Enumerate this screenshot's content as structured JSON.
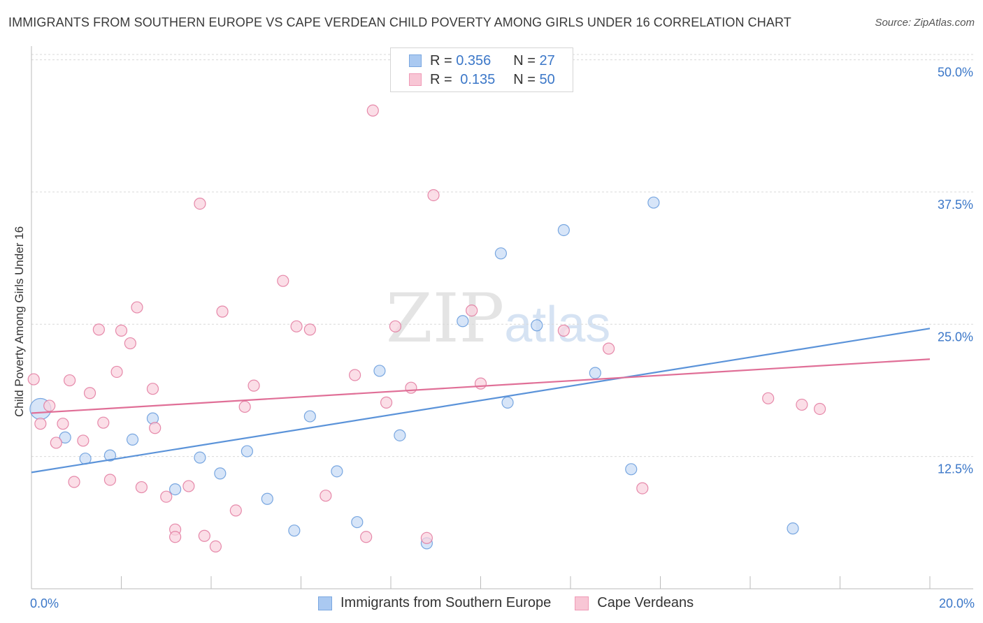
{
  "title": "IMMIGRANTS FROM SOUTHERN EUROPE VS CAPE VERDEAN CHILD POVERTY AMONG GIRLS UNDER 16 CORRELATION CHART",
  "source": "Source: ZipAtlas.com",
  "watermark": {
    "zip": "ZIP",
    "atlas": "atlas"
  },
  "legend": {
    "r_label": "R =",
    "n_label": "N =",
    "rows": [
      {
        "r": "0.356",
        "n": "27",
        "color": "#aac9f1",
        "border": "#7aa7e0"
      },
      {
        "r": "0.135",
        "n": "50",
        "color": "#f8c6d5",
        "border": "#ef9ab6"
      }
    ]
  },
  "bottom_legend": [
    "Immigrants from Southern Europe",
    "Cape Verdeans"
  ],
  "chart_data": {
    "type": "scatter",
    "ylabel": "Child Poverty Among Girls Under 16",
    "x_tick_labels": [
      "0.0%",
      "20.0%"
    ],
    "y_tick_labels": [
      "12.5%",
      "25.0%",
      "37.5%",
      "50.0%"
    ],
    "y_ticks": [
      12.5,
      25.0,
      37.5,
      50.0
    ],
    "xlim": [
      0,
      20
    ],
    "ylim": [
      0,
      50.5
    ],
    "grid": true,
    "legend_placement": "top-center",
    "series": [
      {
        "name": "Immigrants from Southern Europe",
        "color": "#5b93d9",
        "fill": "#c9dcf5",
        "trend": {
          "x": [
            0,
            20
          ],
          "y": [
            11.0,
            24.6
          ]
        },
        "points": [
          {
            "x": 0.2,
            "y": 17.0,
            "big": true
          },
          {
            "x": 0.75,
            "y": 14.3
          },
          {
            "x": 1.2,
            "y": 12.3
          },
          {
            "x": 1.75,
            "y": 12.6
          },
          {
            "x": 2.25,
            "y": 14.1
          },
          {
            "x": 2.7,
            "y": 16.1
          },
          {
            "x": 3.2,
            "y": 9.4
          },
          {
            "x": 3.75,
            "y": 12.4
          },
          {
            "x": 4.2,
            "y": 10.9
          },
          {
            "x": 4.8,
            "y": 13.0
          },
          {
            "x": 5.25,
            "y": 8.5
          },
          {
            "x": 5.85,
            "y": 5.5
          },
          {
            "x": 6.2,
            "y": 16.3
          },
          {
            "x": 6.8,
            "y": 11.1
          },
          {
            "x": 7.25,
            "y": 6.3
          },
          {
            "x": 7.75,
            "y": 20.6
          },
          {
            "x": 8.2,
            "y": 14.5
          },
          {
            "x": 8.8,
            "y": 4.3
          },
          {
            "x": 9.6,
            "y": 25.3
          },
          {
            "x": 10.45,
            "y": 31.7
          },
          {
            "x": 10.6,
            "y": 17.6
          },
          {
            "x": 11.25,
            "y": 24.9
          },
          {
            "x": 11.85,
            "y": 33.9
          },
          {
            "x": 12.55,
            "y": 20.4
          },
          {
            "x": 13.35,
            "y": 11.3
          },
          {
            "x": 13.85,
            "y": 36.5
          },
          {
            "x": 16.95,
            "y": 5.7
          }
        ]
      },
      {
        "name": "Cape Verdeans",
        "color": "#e06f97",
        "fill": "#f9d3df",
        "trend": {
          "x": [
            0,
            20
          ],
          "y": [
            16.6,
            21.7
          ]
        },
        "points": [
          {
            "x": 0.05,
            "y": 19.8
          },
          {
            "x": 0.2,
            "y": 15.6
          },
          {
            "x": 0.4,
            "y": 17.3
          },
          {
            "x": 0.55,
            "y": 13.8
          },
          {
            "x": 0.7,
            "y": 15.6
          },
          {
            "x": 0.85,
            "y": 19.7
          },
          {
            "x": 0.95,
            "y": 10.1
          },
          {
            "x": 1.15,
            "y": 14.0
          },
          {
            "x": 1.3,
            "y": 18.5
          },
          {
            "x": 1.5,
            "y": 24.5
          },
          {
            "x": 1.6,
            "y": 15.7
          },
          {
            "x": 1.75,
            "y": 10.3
          },
          {
            "x": 1.9,
            "y": 20.5
          },
          {
            "x": 2.0,
            "y": 24.4
          },
          {
            "x": 2.2,
            "y": 23.2
          },
          {
            "x": 2.35,
            "y": 26.6
          },
          {
            "x": 2.45,
            "y": 9.6
          },
          {
            "x": 2.7,
            "y": 18.9
          },
          {
            "x": 2.75,
            "y": 15.2
          },
          {
            "x": 3.0,
            "y": 8.7
          },
          {
            "x": 3.2,
            "y": 5.6
          },
          {
            "x": 3.2,
            "y": 4.9
          },
          {
            "x": 3.5,
            "y": 9.7
          },
          {
            "x": 3.75,
            "y": 36.4
          },
          {
            "x": 3.85,
            "y": 5.0
          },
          {
            "x": 4.1,
            "y": 4.0
          },
          {
            "x": 4.25,
            "y": 26.2
          },
          {
            "x": 4.55,
            "y": 7.4
          },
          {
            "x": 4.75,
            "y": 17.2
          },
          {
            "x": 4.95,
            "y": 19.2
          },
          {
            "x": 5.6,
            "y": 29.1
          },
          {
            "x": 5.9,
            "y": 24.8
          },
          {
            "x": 6.2,
            "y": 24.5
          },
          {
            "x": 6.55,
            "y": 8.8
          },
          {
            "x": 7.2,
            "y": 20.2
          },
          {
            "x": 7.45,
            "y": 4.9
          },
          {
            "x": 7.6,
            "y": 45.2
          },
          {
            "x": 7.9,
            "y": 17.6
          },
          {
            "x": 8.1,
            "y": 24.8
          },
          {
            "x": 8.45,
            "y": 19.0
          },
          {
            "x": 8.8,
            "y": 4.8
          },
          {
            "x": 8.95,
            "y": 37.2
          },
          {
            "x": 9.8,
            "y": 26.3
          },
          {
            "x": 10.0,
            "y": 19.4
          },
          {
            "x": 11.85,
            "y": 24.4
          },
          {
            "x": 12.85,
            "y": 22.7
          },
          {
            "x": 13.6,
            "y": 9.5
          },
          {
            "x": 16.4,
            "y": 18.0
          },
          {
            "x": 17.15,
            "y": 17.4
          },
          {
            "x": 17.55,
            "y": 17.0
          }
        ]
      }
    ]
  }
}
